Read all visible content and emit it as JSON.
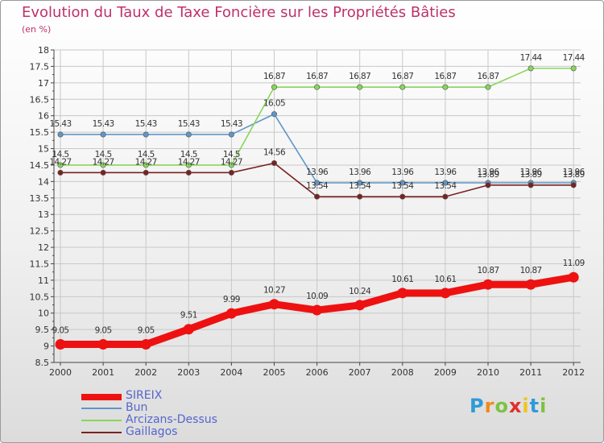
{
  "chart_data": {
    "type": "line",
    "title": "Evolution du Taux de Taxe Foncière sur les Propriétés Bâties",
    "ylabel": "(en %)",
    "xlabel": "",
    "x": [
      "2000",
      "2001",
      "2002",
      "2003",
      "2004",
      "2005",
      "2006",
      "2007",
      "2008",
      "2009",
      "2010",
      "2011",
      "2012"
    ],
    "ylim": [
      8.5,
      18
    ],
    "yticks": [
      "8.5",
      "9",
      "9.5",
      "10",
      "10.5",
      "11",
      "11.5",
      "12",
      "12.5",
      "13",
      "13.5",
      "14",
      "14.5",
      "15",
      "15.5",
      "16",
      "16.5",
      "17",
      "17.5",
      "18"
    ],
    "grid": true,
    "series": [
      {
        "name": "SIREIX",
        "color": "#ee1111",
        "values": [
          9.05,
          9.05,
          9.05,
          9.51,
          9.99,
          10.27,
          10.09,
          10.24,
          10.61,
          10.61,
          10.87,
          10.87,
          11.09
        ],
        "labels": [
          "9.05",
          "9.05",
          "9.05",
          "9.51",
          "9.99",
          "10.27",
          "10.09",
          "10.24",
          "10.61",
          "10.61",
          "10.87",
          "10.87",
          "11.09"
        ]
      },
      {
        "name": "Bun",
        "color": "#5f96c8",
        "values": [
          15.43,
          15.43,
          15.43,
          15.43,
          15.43,
          16.05,
          13.96,
          13.96,
          13.96,
          13.96,
          13.96,
          13.96,
          13.96
        ],
        "labels": [
          "15.43",
          "15.43",
          "15.43",
          "15.43",
          "15.43",
          "16.05",
          "13.96",
          "13.96",
          "13.96",
          "13.96",
          "13.96",
          "13.96",
          "13.96"
        ]
      },
      {
        "name": "Arcizans-Dessus",
        "color": "#88d65a",
        "values": [
          14.5,
          14.5,
          14.5,
          14.5,
          14.5,
          16.87,
          16.87,
          16.87,
          16.87,
          16.87,
          16.87,
          17.44,
          17.44
        ],
        "labels": [
          "14.5",
          "14.5",
          "14.5",
          "14.5",
          "14.5",
          "16.87",
          "16.87",
          "16.87",
          "16.87",
          "16.87",
          "16.87",
          "17.44",
          "17.44"
        ]
      },
      {
        "name": "Gaillagos",
        "color": "#7a2222",
        "values": [
          14.27,
          14.27,
          14.27,
          14.27,
          14.27,
          14.56,
          13.54,
          13.54,
          13.54,
          13.54,
          13.89,
          13.89,
          13.89
        ],
        "labels": [
          "14.27",
          "14.27",
          "14.27",
          "14.27",
          "14.27",
          "14.56",
          "13.54",
          "13.54",
          "13.54",
          "13.54",
          "13.89",
          "13.89",
          "13.89"
        ]
      }
    ]
  },
  "legend": {
    "items": [
      "SIREIX",
      "Bun",
      "Arcizans-Dessus",
      "Gaillagos"
    ]
  },
  "logo": {
    "p": "P",
    "r": "r",
    "o": "o",
    "x": "x",
    "i": "i",
    "t": "t",
    "i2": "i"
  },
  "colors": {
    "title": "#c0306a",
    "legend_text": "#5566cc",
    "grid": "#c8c8c8"
  }
}
